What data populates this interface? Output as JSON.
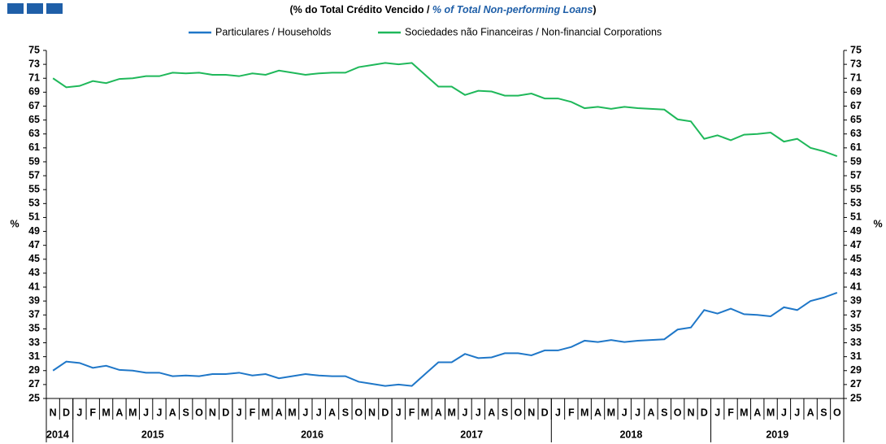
{
  "chart_data": {
    "type": "line",
    "title_parts": [
      "(% do Total Crédito Vencido / ",
      "% of Total Non-performing Loans",
      ")"
    ],
    "ylabel": "%",
    "y2label": "%",
    "categories": [
      "N",
      "D",
      "J",
      "F",
      "M",
      "A",
      "M",
      "J",
      "J",
      "A",
      "S",
      "O",
      "N",
      "D",
      "J",
      "F",
      "M",
      "A",
      "M",
      "J",
      "J",
      "A",
      "S",
      "O",
      "N",
      "D",
      "J",
      "F",
      "M",
      "A",
      "M",
      "J",
      "J",
      "A",
      "S",
      "O",
      "N",
      "D",
      "J",
      "F",
      "M",
      "A",
      "M",
      "J",
      "J",
      "A",
      "S",
      "O",
      "N",
      "D",
      "J",
      "F",
      "M",
      "A",
      "M",
      "J",
      "J",
      "A",
      "S",
      "O"
    ],
    "years": [
      "2014",
      null,
      "2015",
      null,
      null,
      null,
      null,
      null,
      null,
      null,
      null,
      null,
      null,
      null,
      "2016",
      null,
      null,
      null,
      null,
      null,
      null,
      null,
      null,
      null,
      null,
      null,
      "2017",
      null,
      null,
      null,
      null,
      null,
      null,
      null,
      null,
      null,
      null,
      null,
      "2018",
      null,
      null,
      null,
      null,
      null,
      null,
      null,
      null,
      null,
      null,
      null,
      "2019",
      null,
      null,
      null,
      null,
      null,
      null,
      null,
      null,
      null
    ],
    "series": [
      {
        "name": "Particulares / Households",
        "color": "#1f77c8",
        "values": [
          29.0,
          30.3,
          30.1,
          29.4,
          29.7,
          29.1,
          29.0,
          28.7,
          28.7,
          28.2,
          28.3,
          28.2,
          28.5,
          28.5,
          28.7,
          28.3,
          28.5,
          27.9,
          28.2,
          28.5,
          28.3,
          28.2,
          28.2,
          27.4,
          27.1,
          26.8,
          27.0,
          26.8,
          28.5,
          30.2,
          30.2,
          31.4,
          30.8,
          30.9,
          31.5,
          31.5,
          31.2,
          31.9,
          31.9,
          32.4,
          33.3,
          33.1,
          33.4,
          33.1,
          33.3,
          33.4,
          33.5,
          34.9,
          35.2,
          37.7,
          37.2,
          37.9,
          37.1,
          37.0,
          36.8,
          38.1,
          37.7,
          39.0,
          39.5,
          40.2
        ]
      },
      {
        "name": "Sociedades não Financeiras / Non-financial Corporations",
        "color": "#1fb85a",
        "values": [
          71.0,
          69.7,
          69.9,
          70.6,
          70.3,
          70.9,
          71.0,
          71.3,
          71.3,
          71.8,
          71.7,
          71.8,
          71.5,
          71.5,
          71.3,
          71.7,
          71.5,
          72.1,
          71.8,
          71.5,
          71.7,
          71.8,
          71.8,
          72.6,
          72.9,
          73.2,
          73.0,
          73.2,
          71.5,
          69.8,
          69.8,
          68.6,
          69.2,
          69.1,
          68.5,
          68.5,
          68.8,
          68.1,
          68.1,
          67.6,
          66.7,
          66.9,
          66.6,
          66.9,
          66.7,
          66.6,
          66.5,
          65.1,
          64.8,
          62.3,
          62.8,
          62.1,
          62.9,
          63.0,
          63.2,
          61.9,
          62.3,
          61.0,
          60.5,
          59.8
        ]
      }
    ],
    "ylim": [
      25,
      75
    ],
    "yticks": [
      25,
      27,
      29,
      31,
      33,
      35,
      37,
      39,
      41,
      43,
      45,
      47,
      49,
      51,
      53,
      55,
      57,
      59,
      61,
      63,
      65,
      67,
      69,
      71,
      73,
      75
    ],
    "y2lim": [
      25,
      75
    ],
    "y2ticks": [
      25,
      27,
      29,
      31,
      33,
      35,
      37,
      39,
      41,
      43,
      45,
      47,
      49,
      51,
      53,
      55,
      57,
      59,
      61,
      63,
      65,
      67,
      69,
      71,
      73,
      75
    ]
  }
}
